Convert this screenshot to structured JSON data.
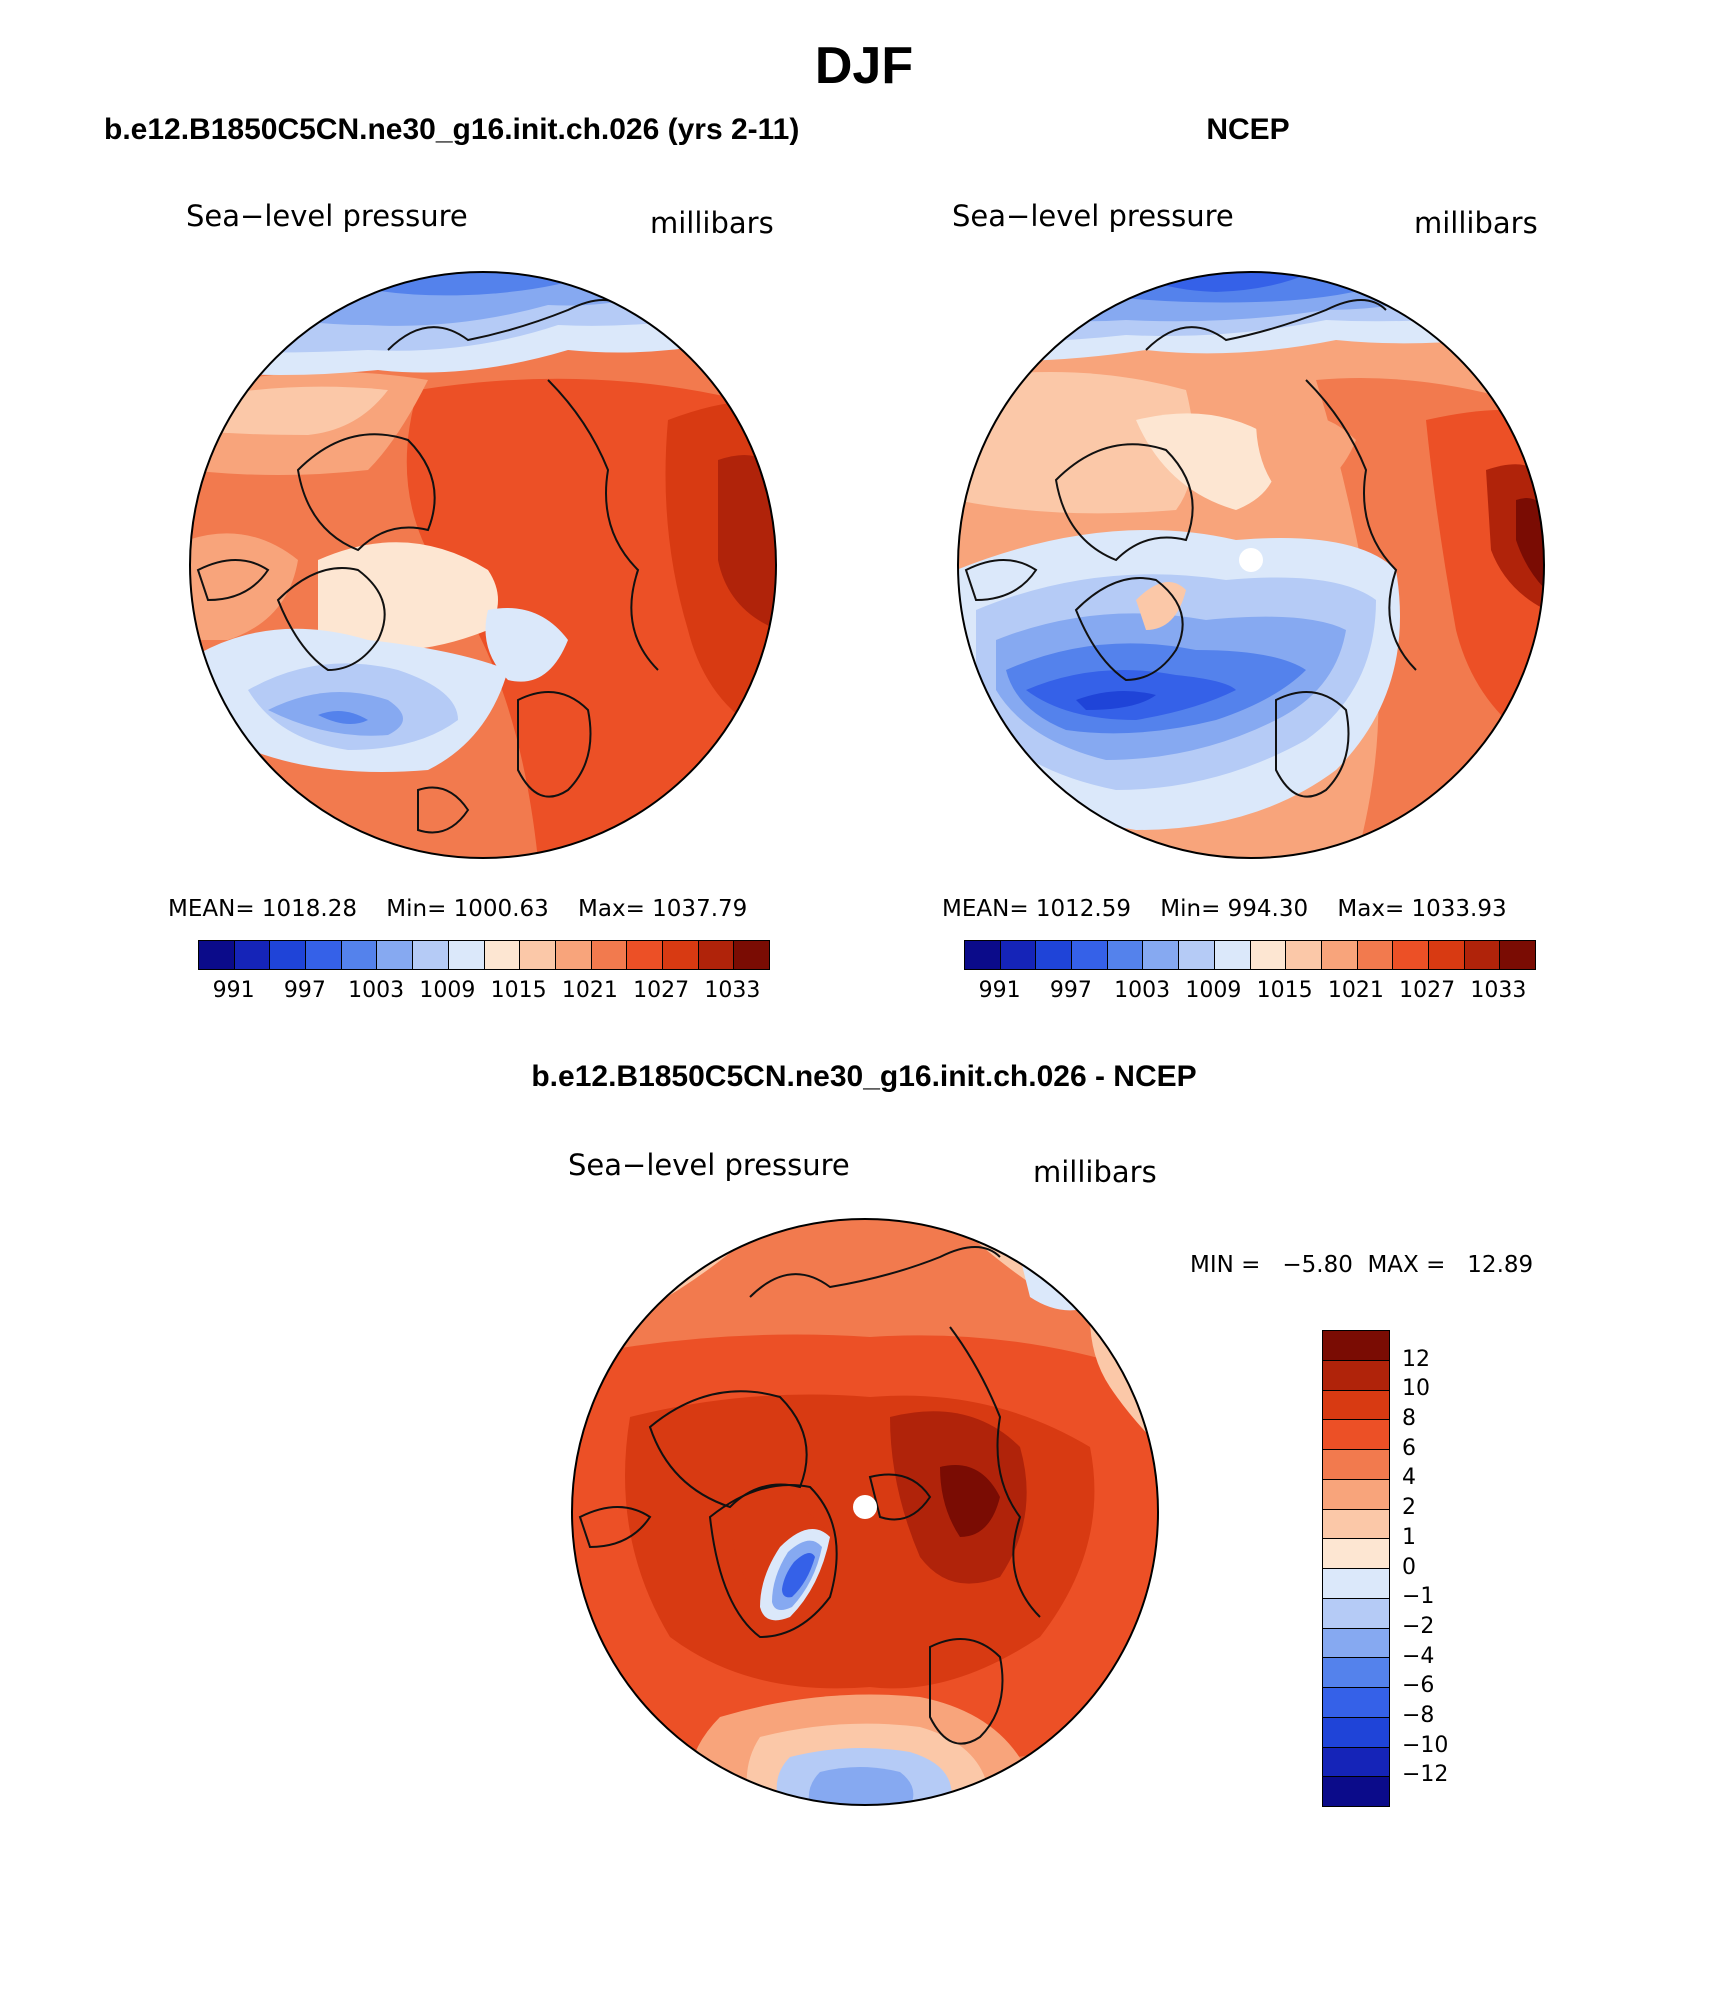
{
  "season_title": "DJF",
  "panels": {
    "model": {
      "header": "b.e12.B1850C5CN.ne30_g16.init.ch.026 (yrs 2-11)",
      "variable": "Sea−level pressure",
      "units": "millibars",
      "stats": {
        "mean": "MEAN= 1018.28",
        "min": "Min= 1000.63",
        "max": "Max= 1037.79"
      },
      "colorbar_labels": [
        "991",
        "997",
        "1003",
        "1009",
        "1015",
        "1021",
        "1027",
        "1033"
      ]
    },
    "obs": {
      "header": "NCEP",
      "variable": "Sea−level pressure",
      "units": "millibars",
      "stats": {
        "mean": "MEAN= 1012.59",
        "min": "Min= 994.30",
        "max": "Max= 1033.93"
      },
      "colorbar_labels": [
        "991",
        "997",
        "1003",
        "1009",
        "1015",
        "1021",
        "1027",
        "1033"
      ]
    },
    "diff": {
      "header": "b.e12.B1850C5CN.ne30_g16.init.ch.026 - NCEP",
      "variable": "Sea−level pressure",
      "units": "millibars",
      "minmax": "MIN =   −5.80  MAX =   12.89",
      "colorbar_labels": [
        "12",
        "10",
        "8",
        "6",
        "4",
        "2",
        "1",
        "0",
        "−1",
        "−2",
        "−4",
        "−6",
        "−8",
        "−10",
        "−12"
      ]
    }
  },
  "colors": {
    "slp_scale": [
      "#0b0b8a",
      "#1524b8",
      "#1f44d8",
      "#3561e8",
      "#5482ec",
      "#86a9f1",
      "#b5cbf6",
      "#dbe8fa",
      "#fde6d2",
      "#fbc8a8",
      "#f8a47b",
      "#f27a4e",
      "#ec5026",
      "#d83a12",
      "#b0230a",
      "#7a0c03"
    ],
    "diff_scale": [
      "#7a0c03",
      "#b0230a",
      "#d83a12",
      "#ec5026",
      "#f27a4e",
      "#f8a47b",
      "#fbc8a8",
      "#fde6d2",
      "#dbe8fa",
      "#b5cbf6",
      "#86a9f1",
      "#5482ec",
      "#3561e8",
      "#1f44d8",
      "#1524b8",
      "#0b0b8a"
    ]
  },
  "chart_data": [
    {
      "type": "heatmap",
      "title": "b.e12.B1850C5CN.ne30_g16.init.ch.026 (yrs 2-11)",
      "variable": "Sea-level pressure",
      "units": "millibars",
      "projection": "north polar stereographic",
      "contour_levels": [
        991,
        994,
        997,
        1000,
        1003,
        1006,
        1009,
        1012,
        1015,
        1018,
        1021,
        1024,
        1027,
        1030,
        1033
      ],
      "mean": 1018.28,
      "min": 1000.63,
      "max": 1037.79
    },
    {
      "type": "heatmap",
      "title": "NCEP",
      "variable": "Sea-level pressure",
      "units": "millibars",
      "projection": "north polar stereographic",
      "contour_levels": [
        991,
        994,
        997,
        1000,
        1003,
        1006,
        1009,
        1012,
        1015,
        1018,
        1021,
        1024,
        1027,
        1030,
        1033
      ],
      "mean": 1012.59,
      "min": 994.3,
      "max": 1033.93
    },
    {
      "type": "heatmap",
      "title": "b.e12.B1850C5CN.ne30_g16.init.ch.026 - NCEP",
      "variable": "Sea-level pressure",
      "units": "millibars",
      "projection": "north polar stereographic",
      "contour_levels": [
        -12,
        -10,
        -8,
        -6,
        -4,
        -2,
        -1,
        0,
        1,
        2,
        4,
        6,
        8,
        10,
        12
      ],
      "min": -5.8,
      "max": 12.89
    }
  ]
}
